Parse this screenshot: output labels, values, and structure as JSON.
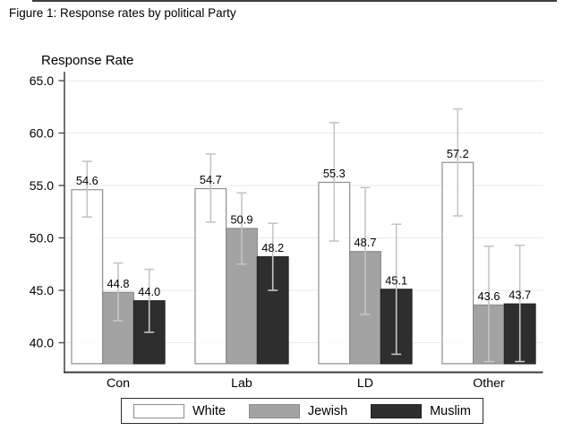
{
  "title": "Figure 1: Response rates by political Party",
  "chart_data": {
    "type": "bar",
    "title": "Figure 1: Response rates by political Party",
    "ylabel": "Response Rate",
    "xlabel": "",
    "categories": [
      "Con",
      "Lab",
      "LD",
      "Other"
    ],
    "series": [
      {
        "name": "White",
        "fill": "#ffffff",
        "stroke": "#8f8f8f",
        "values": [
          54.6,
          54.7,
          55.3,
          57.2
        ],
        "ci_low": [
          52.0,
          51.5,
          49.7,
          52.1
        ],
        "ci_high": [
          57.3,
          58.0,
          61.0,
          62.3
        ]
      },
      {
        "name": "Jewish",
        "fill": "#a3a3a3",
        "stroke": "#8c8c8c",
        "values": [
          44.8,
          50.9,
          48.7,
          43.6
        ],
        "ci_low": [
          42.1,
          47.5,
          42.7,
          38.2
        ],
        "ci_high": [
          47.6,
          54.3,
          54.8,
          49.2
        ]
      },
      {
        "name": "Muslim",
        "fill": "#2e2e2e",
        "stroke": "#222222",
        "values": [
          44.0,
          48.2,
          45.1,
          43.7
        ],
        "ci_low": [
          41.0,
          45.0,
          38.9,
          38.2
        ],
        "ci_high": [
          47.0,
          51.4,
          51.3,
          49.3
        ]
      }
    ],
    "y_ticks": [
      40.0,
      45.0,
      50.0,
      55.0,
      60.0,
      65.0
    ],
    "ylim": [
      37.2,
      66.2
    ],
    "bar_base": 38.0,
    "grid": true,
    "error_bars": true,
    "value_labels": true,
    "legend_position": "bottom",
    "tick_label_format": "one_decimal"
  },
  "colors": {
    "gridline": "#e8e8e8",
    "axis": "#4d4d4d",
    "error_bar": "#c5c5c5",
    "text": "#000000",
    "legend_border": "#2b2b2b",
    "background": "#ffffff"
  }
}
